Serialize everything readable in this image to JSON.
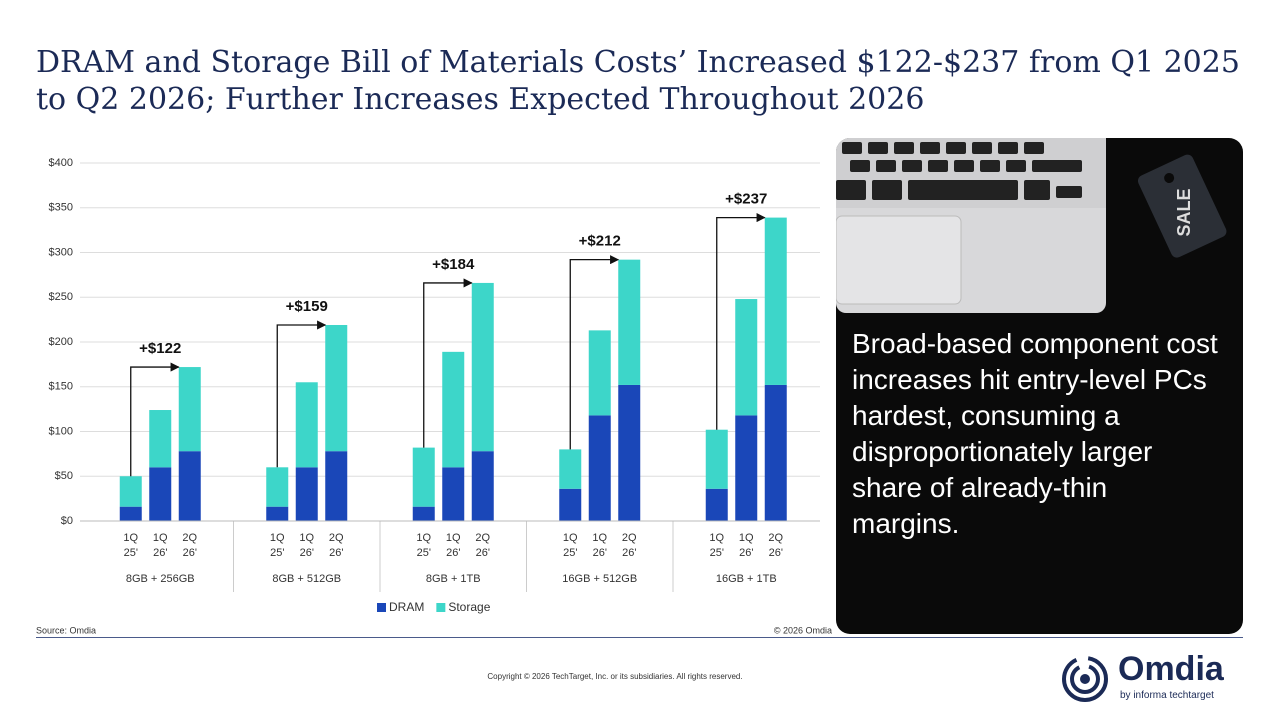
{
  "chart_data": {
    "type": "stacked_bar",
    "title": "DRAM and Storage Bill of Materials Costs’ Increased $122-$237 from Q1 2025 to Q2 2026; Further Increases Expected Throughout 2026",
    "categories": [
      [
        "1Q",
        "25'"
      ],
      [
        "1Q",
        "26'"
      ],
      [
        "2Q",
        "26'"
      ],
      [
        "1Q",
        "25'"
      ],
      [
        "1Q",
        "26'"
      ],
      [
        "2Q",
        "26'"
      ],
      [
        "1Q",
        "25'"
      ],
      [
        "1Q",
        "26'"
      ],
      [
        "2Q",
        "26'"
      ],
      [
        "1Q",
        "25'"
      ],
      [
        "1Q",
        "26'"
      ],
      [
        "2Q",
        "26'"
      ],
      [
        "1Q",
        "25'"
      ],
      [
        "1Q",
        "26'"
      ],
      [
        "2Q",
        "26'"
      ]
    ],
    "group_labels": [
      "8GB + 256GB",
      "8GB + 512GB",
      "8GB + 1TB",
      "16GB + 512GB",
      "16GB + 1TB"
    ],
    "series": [
      {
        "name": "DRAM",
        "color": "#1a47b8",
        "values": [
          16,
          60,
          78,
          16,
          60,
          78,
          16,
          60,
          78,
          36,
          118,
          152,
          36,
          118,
          152
        ]
      },
      {
        "name": "Storage",
        "color": "#3dd6c9",
        "values": [
          34,
          64,
          94,
          44,
          95,
          141,
          66,
          129,
          188,
          44,
          95,
          140,
          66,
          130,
          187
        ]
      }
    ],
    "annotations": [
      "+$122",
      "+$159",
      "+$184",
      "+$212",
      "+$237"
    ],
    "ylim": [
      0,
      400
    ],
    "yticks": [
      {
        "value": 0,
        "label": "$0"
      },
      {
        "value": 50,
        "label": "$50"
      },
      {
        "value": 100,
        "label": "$100"
      },
      {
        "value": 150,
        "label": "$150"
      },
      {
        "value": 200,
        "label": "$200"
      },
      {
        "value": 250,
        "label": "$250"
      },
      {
        "value": 300,
        "label": "$300"
      },
      {
        "value": 350,
        "label": "$350"
      },
      {
        "value": 400,
        "label": "$400"
      }
    ],
    "grid": true,
    "legend": "bottom",
    "source": "Source: Omdia",
    "credit": "© 2026 Omdia"
  },
  "slide": {
    "panel_text": "Broad-based component cost increases hit entry-level PCs hardest, consuming a disproportionately larger share of already-thin margins.",
    "footer": "Copyright © 2026 TechTarget, Inc. or its subsidiaries. All rights reserved.",
    "logo": "Omdia",
    "logo_tagline": "by informa techtarget"
  }
}
